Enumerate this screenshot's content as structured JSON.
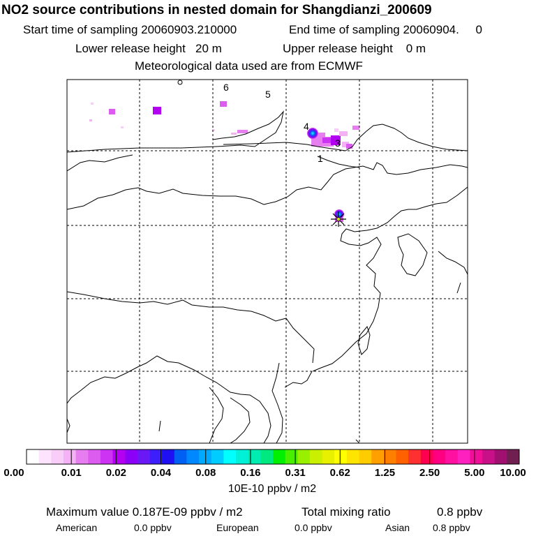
{
  "header": {
    "title": "NO2 source contributions in nested domain for Shangdianzi_200609",
    "start_label": "Start time of sampling 20060903.210000",
    "end_label": "End time of sampling 20060904.     0",
    "lower_label": "Lower release height   20 m",
    "upper_label": "Upper release height    0 m",
    "met_label": "Meteorological data used are from ECMWF"
  },
  "chart_data": {
    "type": "heatmap",
    "title": "NO2 source contributions in nested domain for Shangdianzi_200609",
    "receptor": "Shangdianzi",
    "map_labels": [
      "6",
      "5",
      "4",
      "3",
      "1"
    ],
    "grid": true,
    "colorbar": {
      "tick_labels": [
        "0.00",
        "0.01",
        "0.02",
        "0.04",
        "0.08",
        "0.16",
        "0.31",
        "0.62",
        "1.25",
        "2.50",
        "5.00",
        "10.00"
      ],
      "units": "10E-10 ppbv / m2",
      "colors": [
        "#ffffff",
        "#fde3fd",
        "#f8cdf8",
        "#f4b2f4",
        "#e77ef0",
        "#dd5cf0",
        "#cc33f3",
        "#b400f2",
        "#8c00f7",
        "#6a18f5",
        "#3c1ffa",
        "#1e10f0",
        "#0060f4",
        "#0088ff",
        "#00aaff",
        "#00ccff",
        "#00ffff",
        "#00f0d8",
        "#00ecb0",
        "#00e880",
        "#00f000",
        "#48f000",
        "#98f000",
        "#c8f000",
        "#e8f000",
        "#ffff00",
        "#ffe400",
        "#ffcc00",
        "#ffa000",
        "#ff8000",
        "#ff6000",
        "#ff3030",
        "#ff0050",
        "#ff0080",
        "#ff10a0",
        "#ff20c0",
        "#f01098",
        "#c81088",
        "#a01070",
        "#702050"
      ]
    }
  },
  "summary": {
    "max_label": "Maximum value  0.187E-09 ppbv / m2",
    "total_label": "Total mixing ratio",
    "total_value": "0.8 ppbv",
    "american_label": "American",
    "american_value": "0.0 ppbv",
    "european_label": "European",
    "european_value": "0.0 ppbv",
    "asian_label": "Asian",
    "asian_value": "0.8 ppbv"
  }
}
